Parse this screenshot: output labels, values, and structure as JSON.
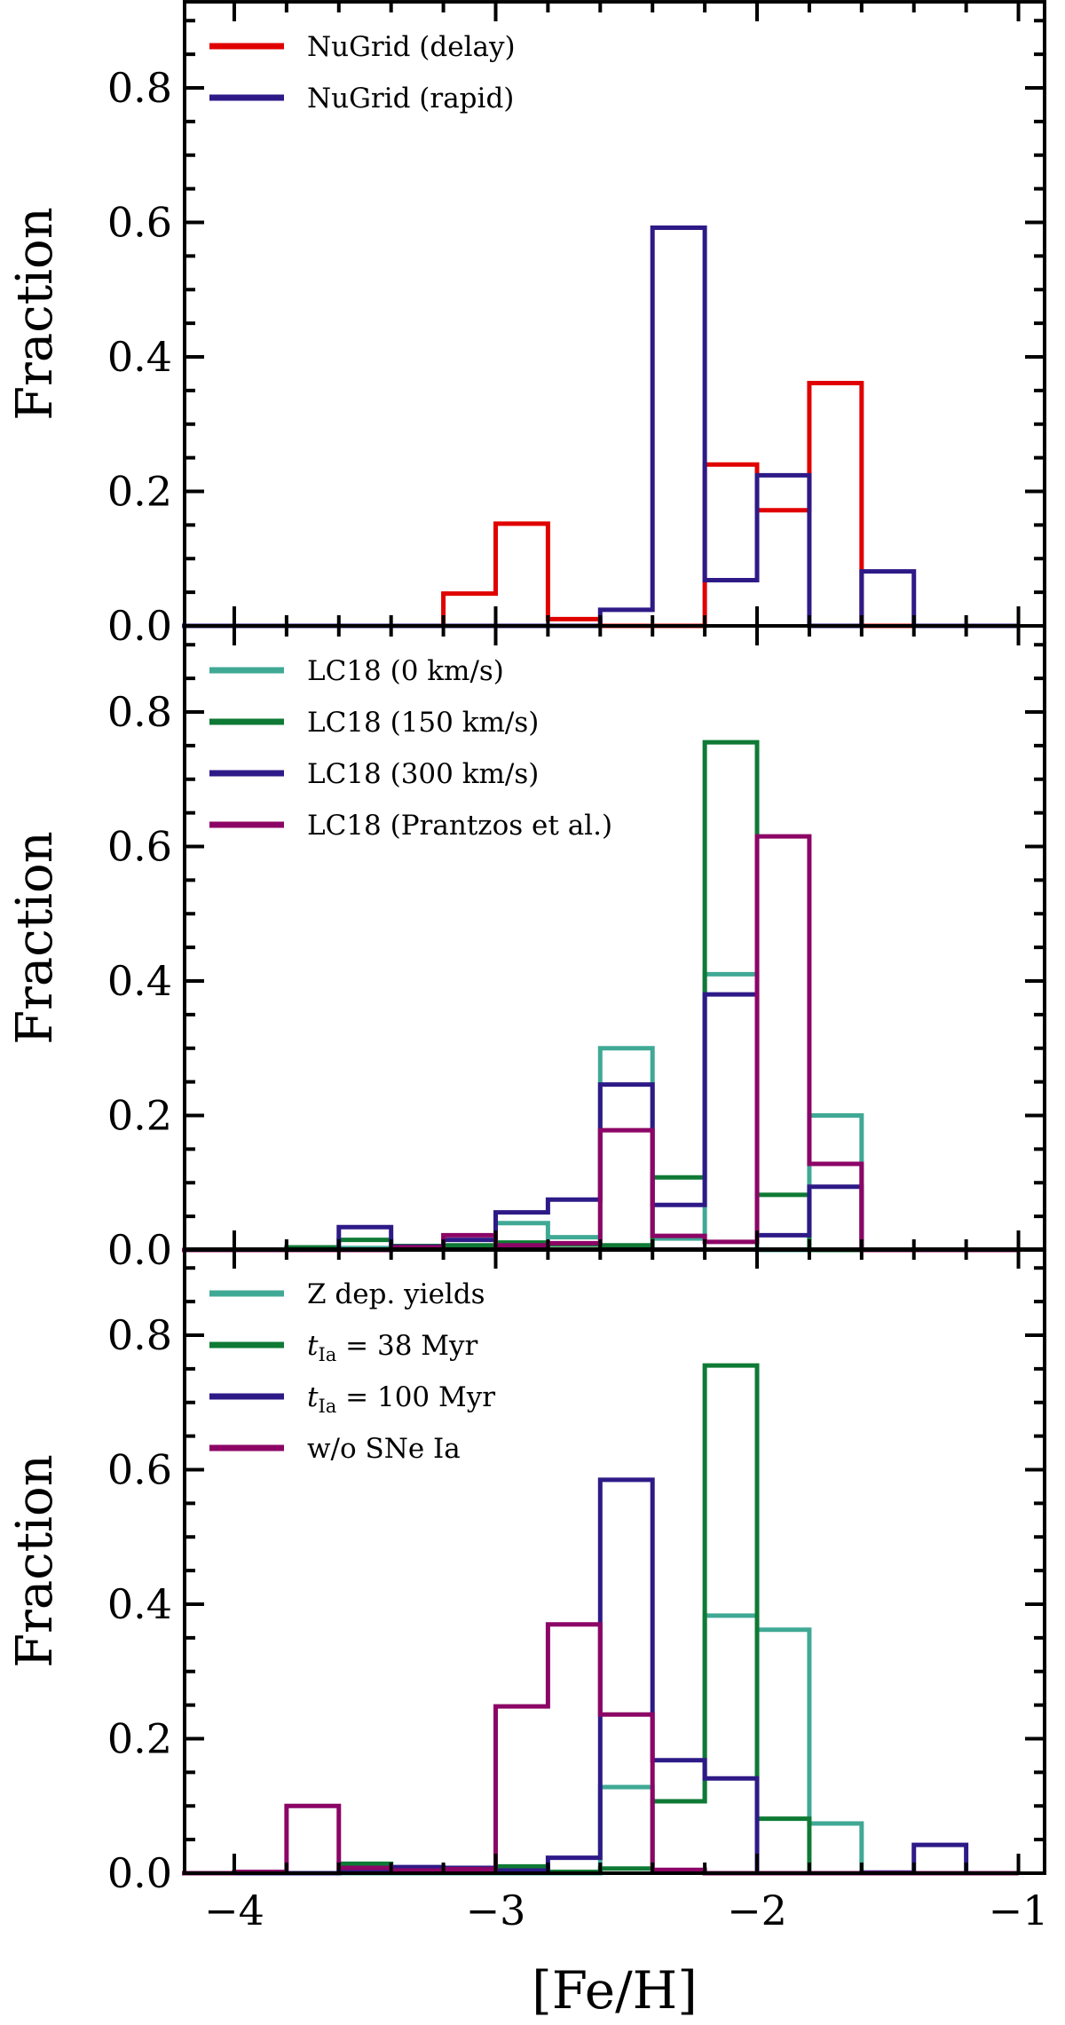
{
  "chart_data": [
    {
      "type": "histogram-step",
      "ylabel": "Fraction",
      "xlabel": "",
      "xlim": [
        -4.19,
        -0.9
      ],
      "ylim": [
        0,
        0.928
      ],
      "bin_edges": [
        -4.2,
        -4.0,
        -3.8,
        -3.6,
        -3.4,
        -3.2,
        -3.0,
        -2.8,
        -2.6,
        -2.4,
        -2.2,
        -2.0,
        -1.8,
        -1.6,
        -1.4,
        -1.2,
        -1.0
      ],
      "yticks": [
        "0.0",
        "0.2",
        "0.4",
        "0.6",
        "0.8"
      ],
      "legend_position": "top-left",
      "series": [
        {
          "name": "NuGrid (delay)",
          "color": "#e00000",
          "values": [
            0,
            0,
            0,
            0,
            0,
            0.048,
            0.152,
            0.01,
            0,
            0,
            0.24,
            0.172,
            0.361,
            0,
            0,
            0
          ]
        },
        {
          "name": "NuGrid (rapid)",
          "color": "#2e1a87",
          "values": [
            0,
            0,
            0,
            0,
            0,
            0,
            0,
            0,
            0.024,
            0.592,
            0.068,
            0.224,
            0,
            0.081,
            0,
            0
          ]
        }
      ]
    },
    {
      "type": "histogram-step",
      "ylabel": "Fraction",
      "xlabel": "",
      "xlim": [
        -4.19,
        -0.9
      ],
      "ylim": [
        0,
        0.928
      ],
      "bin_edges": [
        -4.2,
        -4.0,
        -3.8,
        -3.6,
        -3.4,
        -3.2,
        -3.0,
        -2.8,
        -2.6,
        -2.4,
        -2.2,
        -2.0,
        -1.8,
        -1.6,
        -1.4,
        -1.2,
        -1.0
      ],
      "yticks": [
        "0.0",
        "0.2",
        "0.4",
        "0.6",
        "0.8"
      ],
      "legend_position": "top-left",
      "series": [
        {
          "name": "LC18 (0 km/s)",
          "color": "#40a995",
          "values": [
            0,
            0,
            0.003,
            0.003,
            0.003,
            0.004,
            0.04,
            0.019,
            0.3,
            0.017,
            0.41,
            0,
            0.2,
            0,
            0,
            0
          ]
        },
        {
          "name": "LC18 (150 km/s)",
          "color": "#0e7a35",
          "values": [
            0,
            0,
            0.004,
            0.015,
            0.006,
            0.007,
            0.011,
            0.008,
            0.007,
            0.108,
            0.755,
            0.082,
            0,
            0,
            0,
            0
          ]
        },
        {
          "name": "LC18 (300 km/s)",
          "color": "#2e1a87",
          "values": [
            0,
            0,
            0,
            0.034,
            0.005,
            0.015,
            0.056,
            0.075,
            0.246,
            0.067,
            0.38,
            0.022,
            0.094,
            0,
            0,
            0
          ]
        },
        {
          "name": "LC18 (Prantzos et al.)",
          "color": "#8c0566",
          "values": [
            0,
            0,
            0,
            0,
            0.004,
            0.022,
            0.007,
            0.01,
            0.178,
            0.021,
            0.012,
            0.615,
            0.128,
            0,
            0,
            0
          ]
        }
      ]
    },
    {
      "type": "histogram-step",
      "ylabel": "Fraction",
      "xlabel": "[Fe/H]",
      "xlim": [
        -4.19,
        -0.9
      ],
      "ylim": [
        0,
        0.928
      ],
      "bin_edges": [
        -4.2,
        -4.0,
        -3.8,
        -3.6,
        -3.4,
        -3.2,
        -3.0,
        -2.8,
        -2.6,
        -2.4,
        -2.2,
        -2.0,
        -1.8,
        -1.6,
        -1.4,
        -1.2,
        -1.0
      ],
      "xticks": [
        "−4",
        "−3",
        "−2",
        "−1"
      ],
      "yticks": [
        "0.0",
        "0.2",
        "0.4",
        "0.6",
        "0.8"
      ],
      "legend_position": "top-left",
      "series": [
        {
          "name": "Z dep. yields",
          "color": "#40a995",
          "values": [
            0,
            0,
            0,
            0,
            0,
            0,
            0,
            0,
            0.128,
            0.107,
            0.383,
            0.362,
            0.074,
            0,
            0,
            0
          ]
        },
        {
          "name": "t_Ia = 38 Myr",
          "color": "#0e7a35",
          "values": [
            0,
            0,
            0,
            0.014,
            0.005,
            0.004,
            0.01,
            0.002,
            0.007,
            0.107,
            0.755,
            0.081,
            0,
            0,
            0,
            0
          ]
        },
        {
          "name": "t_Ia = 100 Myr",
          "color": "#2e1a87",
          "values": [
            0,
            0,
            0,
            0.002,
            0.009,
            0.008,
            0.004,
            0.023,
            0.585,
            0.168,
            0.141,
            0,
            0,
            0.001,
            0.042,
            0
          ]
        },
        {
          "name": "w/o SNe Ia",
          "color": "#8c0566",
          "values": [
            0,
            0.002,
            0.1,
            0.008,
            0.004,
            0.006,
            0.248,
            0.37,
            0.236,
            0.005,
            0,
            0,
            0,
            0,
            0,
            0
          ]
        }
      ]
    }
  ]
}
